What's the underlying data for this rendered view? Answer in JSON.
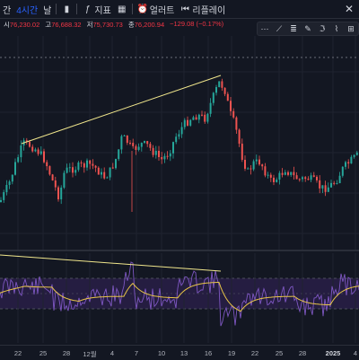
{
  "toolbar": {
    "interval_partial": "간",
    "interval": "4시간",
    "chart_type_partial": "날",
    "indicators": "지표",
    "alerts": "얼러트",
    "replay": "리플레이"
  },
  "ohlc": {
    "open_label": "시",
    "open": "76,230.02",
    "high_label": "고",
    "high": "76,688.32",
    "low_label": "저",
    "low": "75,730.73",
    "close_label": "종",
    "close": "76,200.94",
    "change": "−129.08 (−0.17%)"
  },
  "colors": {
    "background": "#131722",
    "up": "#26a69a",
    "down": "#ef5350",
    "trendline": "#f0e68c",
    "rsi_line": "#7e57c2",
    "rsi_ma": "#e8c547",
    "rsi_band": "#2a1f4a",
    "accent": "#2962ff"
  },
  "icons": {
    "interval": "clock-icon",
    "chart_type": "candles-icon",
    "indicators": "function-icon",
    "alerts": "alarm-clock-icon",
    "replay": "rewind-icon",
    "close": "close-icon",
    "drawing_tools": [
      "cursor-icon",
      "trendline-icon",
      "fib-icon",
      "brush-icon",
      "text-icon",
      "pattern-icon",
      "forecast-icon"
    ]
  },
  "time_axis": {
    "labels": [
      "22",
      "25",
      "28",
      "12월",
      "4",
      "7",
      "10",
      "13",
      "16",
      "19",
      "22",
      "25",
      "28",
      "2025",
      "4"
    ]
  },
  "chart_data": {
    "type": "candlestick",
    "overlays": [
      "trendline",
      "rsi"
    ],
    "grid": true,
    "x_labels": [
      "22",
      "25",
      "28",
      "12월",
      "4",
      "7",
      "10",
      "13",
      "16",
      "19",
      "22",
      "25",
      "28",
      "2025",
      "4"
    ]
  }
}
